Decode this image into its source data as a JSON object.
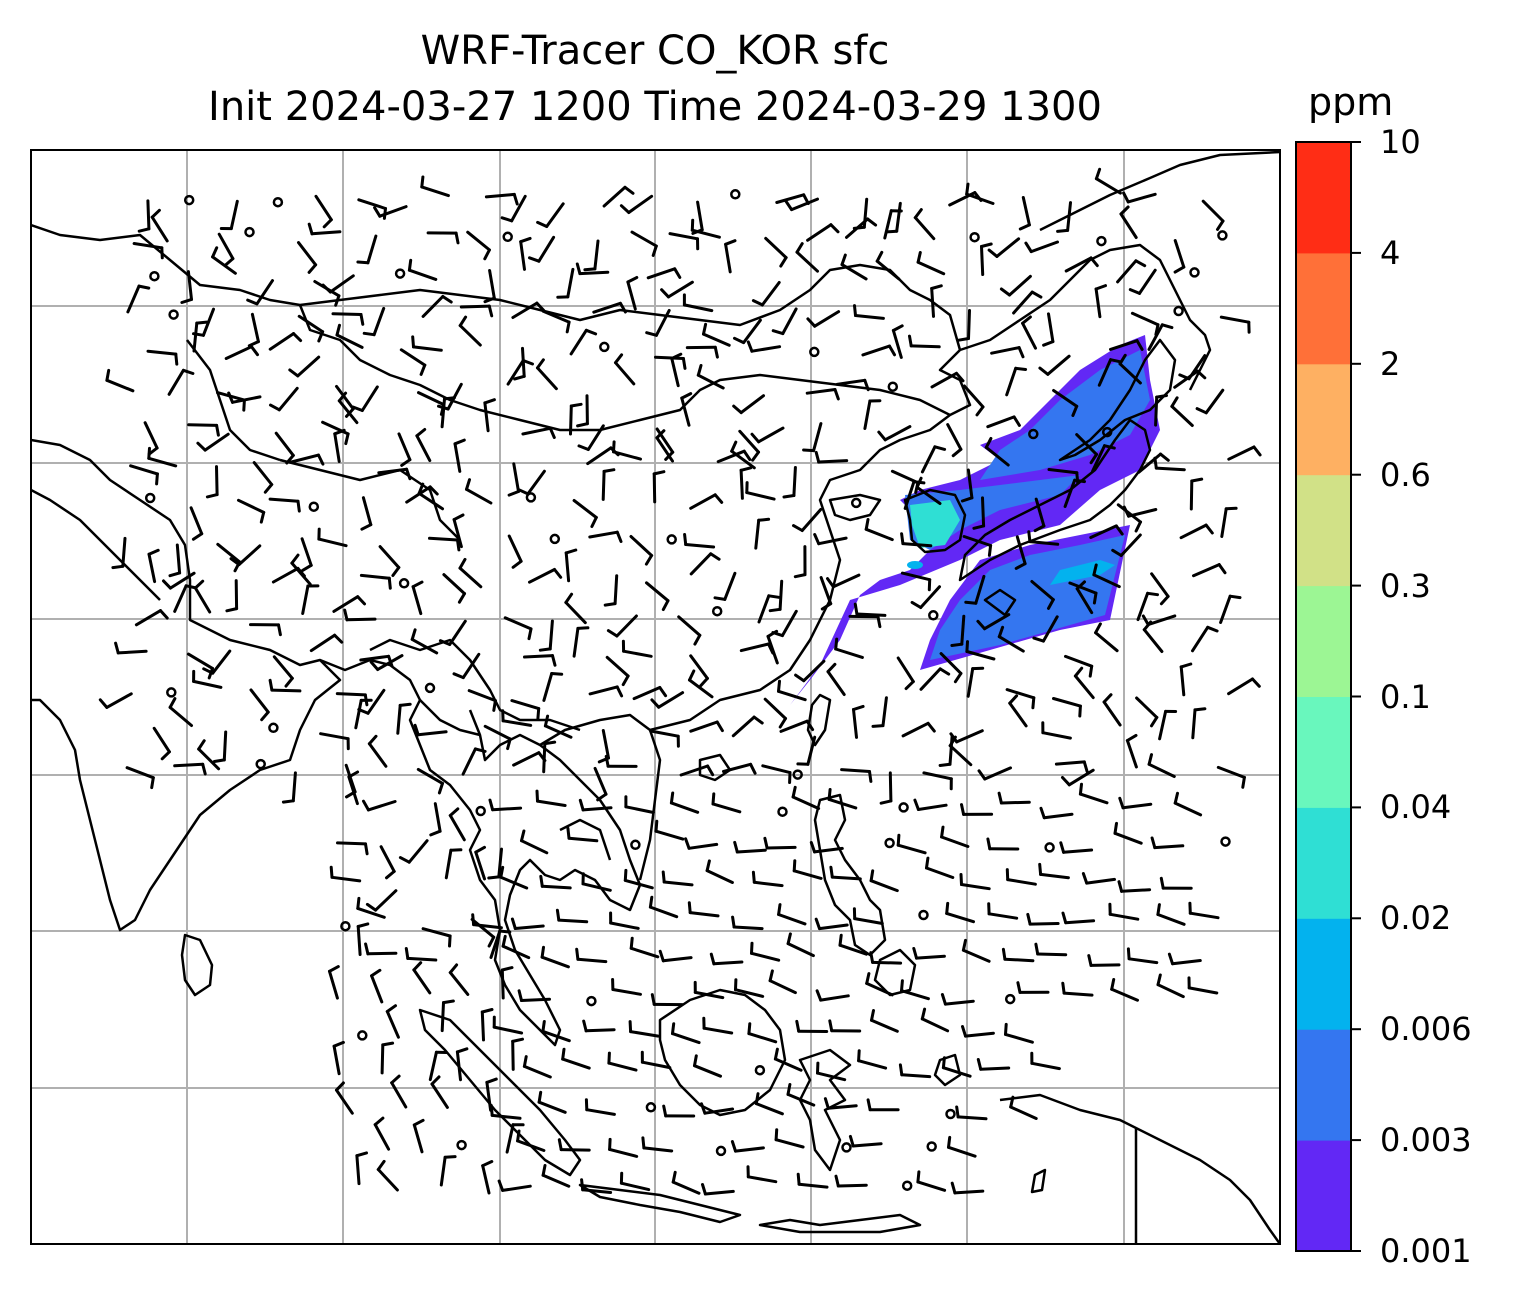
{
  "title": {
    "line1": "WRF-Tracer CO_KOR sfc",
    "line2": "Init 2024-03-27 1200 Time 2024-03-29 1300"
  },
  "colorbar": {
    "unit": "ppm",
    "ticks": [
      "0.001",
      "0.003",
      "0.006",
      "0.02",
      "0.04",
      "0.1",
      "0.3",
      "0.6",
      "2",
      "4",
      "10"
    ],
    "colors": [
      "#6228f5",
      "#3476f0",
      "#03b2ee",
      "#2fdfd4",
      "#69f7bd",
      "#9cf694",
      "#d1e187",
      "#feb062",
      "#ff7038",
      "#ff2d15"
    ]
  },
  "map": {
    "projection": "lat-lon with 6x7 gridline cells",
    "region": "East / Southeast Asia",
    "features": [
      "coastlines",
      "country borders",
      "wind barbs",
      "tracer plume over Korea and Japan"
    ]
  }
}
